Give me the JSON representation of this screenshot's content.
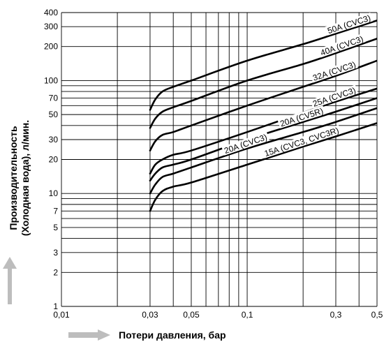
{
  "chart_data": {
    "type": "line",
    "xscale": "log",
    "yscale": "log",
    "xlim": [
      0.01,
      0.5
    ],
    "ylim": [
      1,
      400
    ],
    "grid": true,
    "xlabel": "Потери давления, бар",
    "ylabel_line1": "Производительность",
    "ylabel_line2": "(Холодная вода), л/мин.",
    "xticks": [
      {
        "value": 0.01,
        "label": "0,01"
      },
      {
        "value": 0.03,
        "label": "0,03"
      },
      {
        "value": 0.05,
        "label": "0,05"
      },
      {
        "value": 0.1,
        "label": "0,1"
      },
      {
        "value": 0.3,
        "label": "0,3"
      },
      {
        "value": 0.5,
        "label": "0,5"
      }
    ],
    "yticks": [
      {
        "value": 1,
        "label": "1"
      },
      {
        "value": 2,
        "label": "2"
      },
      {
        "value": 3,
        "label": "3"
      },
      {
        "value": 5,
        "label": "5"
      },
      {
        "value": 7,
        "label": "7"
      },
      {
        "value": 10,
        "label": "10"
      },
      {
        "value": 20,
        "label": "20"
      },
      {
        "value": 30,
        "label": "30"
      },
      {
        "value": 50,
        "label": "50"
      },
      {
        "value": 70,
        "label": "70"
      },
      {
        "value": 100,
        "label": "100"
      },
      {
        "value": 200,
        "label": "200"
      },
      {
        "value": 300,
        "label": "300"
      },
      {
        "value": 400,
        "label": "400"
      }
    ],
    "series": [
      {
        "name": "50A (CVC3)",
        "x": [
          0.03,
          0.032,
          0.035,
          0.04,
          0.05,
          0.1,
          0.2,
          0.3,
          0.5
        ],
        "y": [
          55,
          68,
          80,
          88,
          100,
          150,
          210,
          260,
          340
        ]
      },
      {
        "name": "40A (CVC3)",
        "x": [
          0.03,
          0.032,
          0.035,
          0.04,
          0.05,
          0.1,
          0.2,
          0.3,
          0.5
        ],
        "y": [
          38,
          46,
          53,
          58,
          66,
          100,
          140,
          175,
          235
        ]
      },
      {
        "name": "32A (CVC3)",
        "x": [
          0.03,
          0.032,
          0.035,
          0.04,
          0.05,
          0.1,
          0.2,
          0.3,
          0.5
        ],
        "y": [
          24,
          29,
          33,
          35,
          40,
          60,
          88,
          110,
          150
        ]
      },
      {
        "name": "25A (CVC3)",
        "x": [
          0.03,
          0.032,
          0.035,
          0.04,
          0.05,
          0.1,
          0.2,
          0.3,
          0.5
        ],
        "y": [
          15,
          18,
          20,
          22,
          24,
          35,
          52,
          65,
          85
        ]
      },
      {
        "name": "20A (CV5R)",
        "x": [
          0.03,
          0.032,
          0.035,
          0.04,
          0.05,
          0.1,
          0.2,
          0.3,
          0.5
        ],
        "y": [
          13,
          15,
          17,
          18,
          20,
          30,
          43,
          53,
          70
        ]
      },
      {
        "name": "20A (CVC3)",
        "x": [
          0.03,
          0.032,
          0.035,
          0.04,
          0.05,
          0.1,
          0.2,
          0.3,
          0.5
        ],
        "y": [
          10,
          12,
          14,
          15,
          17,
          25,
          35,
          43,
          57
        ]
      },
      {
        "name": "15A (CVC3, CVC3R)",
        "x": [
          0.03,
          0.032,
          0.035,
          0.04,
          0.05,
          0.1,
          0.2,
          0.3,
          0.5
        ],
        "y": [
          7,
          8.8,
          10.5,
          11.5,
          12.5,
          18,
          26,
          32,
          42
        ]
      }
    ]
  },
  "colors": {
    "lines": "#000000",
    "grid": "#000000",
    "arrow": "#bdbdbd",
    "background": "#ffffff"
  }
}
